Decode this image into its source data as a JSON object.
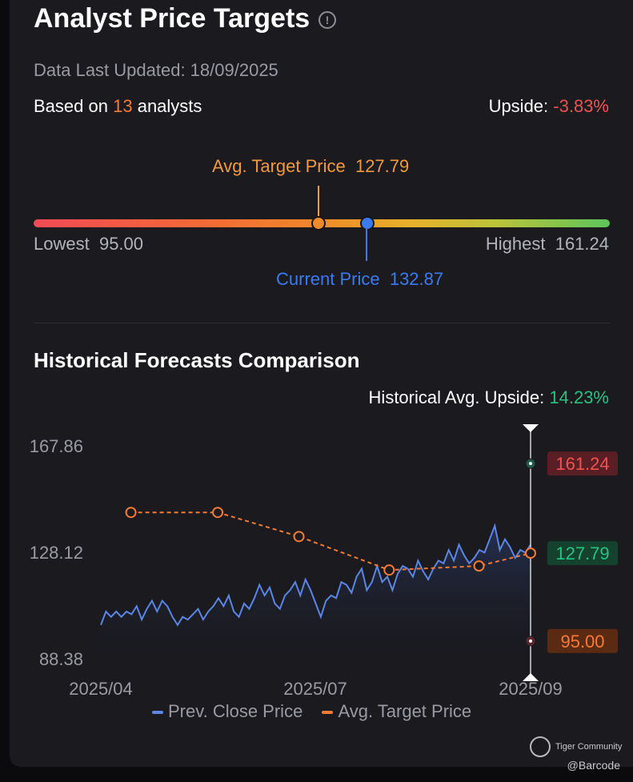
{
  "header": {
    "title": "Analyst Price Targets",
    "updated": "Data Last Updated: 18/09/2025",
    "based_prefix": "Based on",
    "analyst_count": "13",
    "based_suffix": "analysts",
    "upside_label": "Upside:",
    "upside_value": "-3.83%"
  },
  "range": {
    "avg_label": "Avg. Target Price",
    "avg_value": "127.79",
    "current_label": "Current Price",
    "current_value": "132.87",
    "lowest_label": "Lowest",
    "lowest_value": "95.00",
    "highest_label": "Highest",
    "highest_value": "161.24"
  },
  "history": {
    "title": "Historical Forecasts Comparison",
    "avg_upside_label": "Historical Avg. Upside:",
    "avg_upside_value": "14.23%"
  },
  "legend": {
    "close": "Prev. Close Price",
    "target": "Avg. Target Price"
  },
  "colors": {
    "close": "#5b86e5",
    "target": "#f47a35",
    "high_badge": "#ef5350",
    "avg_badge": "#26c281",
    "low_badge": "#f47a35"
  },
  "chart_data": {
    "type": "line",
    "ylim": [
      88.38,
      167.86
    ],
    "y_ticks": [
      "167.86",
      "128.12",
      "88.38"
    ],
    "x_ticks": [
      "2025/04",
      "2025/07",
      "2025/09"
    ],
    "series": [
      {
        "name": "Prev. Close Price",
        "values": [
          101,
          106,
          104,
          106,
          104,
          106,
          105,
          108,
          103,
          107,
          110,
          106,
          110,
          108,
          104,
          101,
          104,
          103,
          105,
          107,
          103,
          106,
          108,
          111,
          108,
          112,
          106,
          104,
          109,
          107,
          111,
          116,
          112,
          115,
          109,
          107,
          112,
          114,
          117,
          112,
          118,
          114,
          109,
          104,
          110,
          112,
          111,
          117,
          116,
          113,
          119,
          122,
          114,
          117,
          123,
          117,
          119,
          114,
          120,
          123,
          122,
          119,
          125,
          121,
          118,
          122,
          125,
          124,
          129,
          125,
          131,
          127,
          124,
          126,
          129,
          128,
          133,
          138,
          129,
          133,
          130,
          126,
          129,
          128,
          131
        ]
      },
      {
        "name": "Avg. Target Price",
        "points": [
          [
            0.07,
            143
          ],
          [
            0.272,
            143
          ],
          [
            0.461,
            134
          ],
          [
            0.671,
            121.5
          ],
          [
            0.88,
            123
          ],
          [
            1.0,
            127.79
          ]
        ]
      }
    ],
    "markers": [
      {
        "label": "161.24",
        "value": 161.24,
        "kind": "high"
      },
      {
        "label": "127.79",
        "value": 127.79,
        "kind": "avg"
      },
      {
        "label": "95.00",
        "value": 95.0,
        "kind": "low"
      }
    ]
  },
  "brand": {
    "name": "Tiger Community",
    "handle": "@Barcode"
  }
}
